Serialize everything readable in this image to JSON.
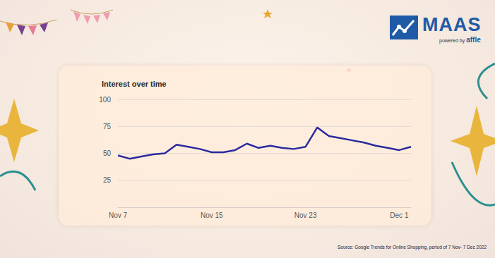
{
  "chart_data": {
    "type": "line",
    "title": "Interest over time",
    "categories": [
      "Nov 7",
      null,
      null,
      null,
      null,
      null,
      null,
      null,
      "Nov 15",
      null,
      null,
      null,
      null,
      null,
      null,
      null,
      "Nov 23",
      null,
      null,
      null,
      null,
      null,
      null,
      null,
      "Dec 1",
      null
    ],
    "values": [
      48,
      45,
      47,
      49,
      50,
      58,
      56,
      54,
      51,
      51,
      53,
      59,
      55,
      57,
      55,
      54,
      56,
      74,
      66,
      64,
      62,
      60,
      57,
      55,
      53,
      56
    ],
    "color": "#2b2a9e",
    "ylim": [
      0,
      100
    ],
    "yticks": [
      25,
      50,
      75,
      100
    ],
    "grid": true,
    "annotations": [
      "Source: Google Trends for Online Shopping, period of 7 Nov- 7 Dec 2022"
    ]
  },
  "logo": {
    "name": "MAAS",
    "tagline": "powered by",
    "brand": "affle"
  }
}
